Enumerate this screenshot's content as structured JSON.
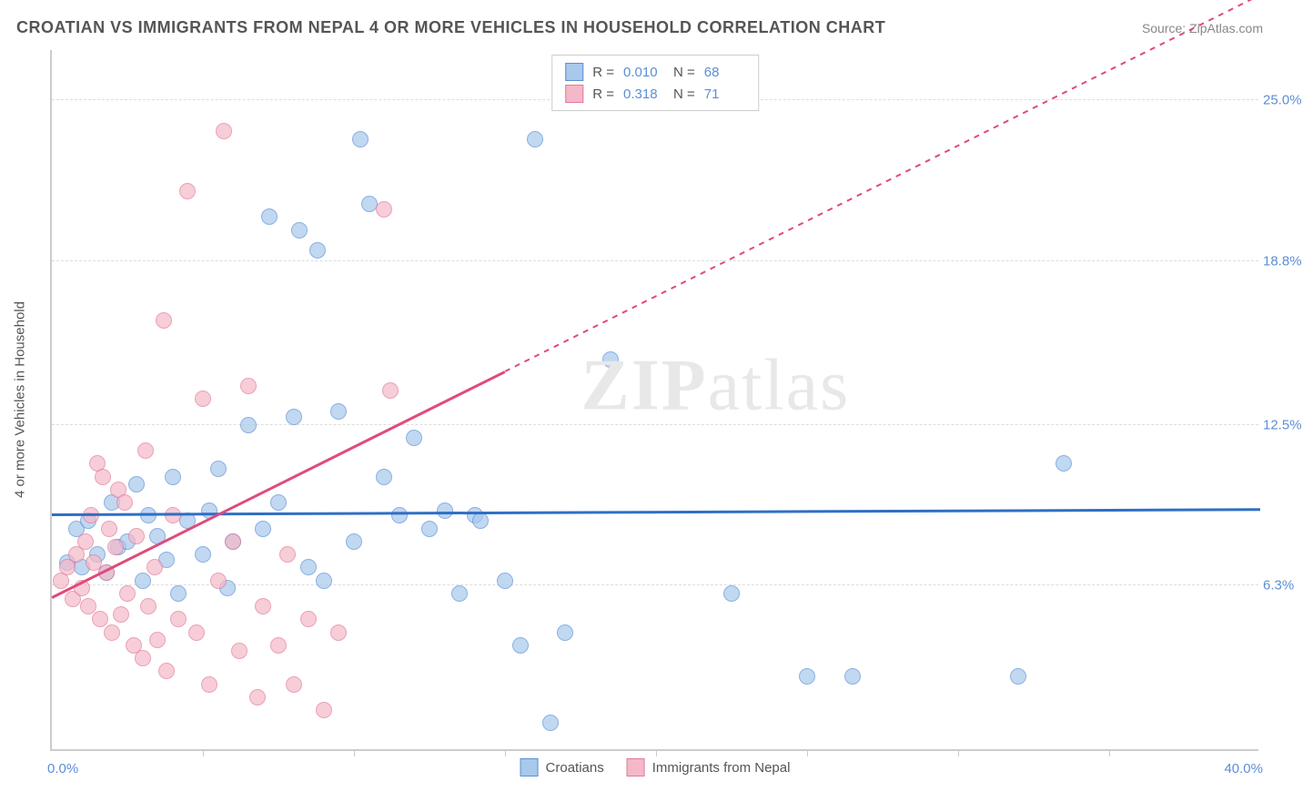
{
  "title": "CROATIAN VS IMMIGRANTS FROM NEPAL 4 OR MORE VEHICLES IN HOUSEHOLD CORRELATION CHART",
  "source": "Source: ZipAtlas.com",
  "watermark_part1": "ZIP",
  "watermark_part2": "atlas",
  "y_axis_title": "4 or more Vehicles in Household",
  "chart": {
    "type": "scatter",
    "xlim": [
      0,
      40
    ],
    "ylim": [
      0,
      27
    ],
    "x_min_label": "0.0%",
    "x_max_label": "40.0%",
    "x_ticks": [
      5,
      10,
      15,
      20,
      25,
      30,
      35
    ],
    "y_gridlines": [
      {
        "value": 6.3,
        "label": "6.3%"
      },
      {
        "value": 12.5,
        "label": "12.5%"
      },
      {
        "value": 18.8,
        "label": "18.8%"
      },
      {
        "value": 25.0,
        "label": "25.0%"
      }
    ],
    "grid_color": "#dddddd",
    "background_color": "#ffffff",
    "axis_color": "#cccccc",
    "tick_label_color": "#5b8fd6"
  },
  "series": [
    {
      "name": "Croatians",
      "fill_color": "#a8c8ec",
      "stroke_color": "#5b8fd6",
      "line_color": "#2f6fc4",
      "R": "0.010",
      "N": "68",
      "trend": {
        "x1": 0,
        "y1": 9.0,
        "x2": 40,
        "y2": 9.2,
        "dash": false
      },
      "points": [
        [
          0.5,
          7.2
        ],
        [
          0.8,
          8.5
        ],
        [
          1.0,
          7.0
        ],
        [
          1.2,
          8.8
        ],
        [
          1.5,
          7.5
        ],
        [
          1.8,
          6.8
        ],
        [
          2.0,
          9.5
        ],
        [
          2.2,
          7.8
        ],
        [
          2.5,
          8.0
        ],
        [
          2.8,
          10.2
        ],
        [
          3.0,
          6.5
        ],
        [
          3.2,
          9.0
        ],
        [
          3.5,
          8.2
        ],
        [
          3.8,
          7.3
        ],
        [
          4.0,
          10.5
        ],
        [
          4.2,
          6.0
        ],
        [
          4.5,
          8.8
        ],
        [
          5.0,
          7.5
        ],
        [
          5.2,
          9.2
        ],
        [
          5.5,
          10.8
        ],
        [
          5.8,
          6.2
        ],
        [
          6.0,
          8.0
        ],
        [
          6.5,
          12.5
        ],
        [
          7.0,
          8.5
        ],
        [
          7.2,
          20.5
        ],
        [
          7.5,
          9.5
        ],
        [
          8.0,
          12.8
        ],
        [
          8.2,
          20.0
        ],
        [
          8.5,
          7.0
        ],
        [
          8.8,
          19.2
        ],
        [
          9.0,
          6.5
        ],
        [
          9.5,
          13.0
        ],
        [
          10.0,
          8.0
        ],
        [
          10.2,
          23.5
        ],
        [
          10.5,
          21.0
        ],
        [
          11.0,
          10.5
        ],
        [
          11.5,
          9.0
        ],
        [
          12.0,
          12.0
        ],
        [
          12.5,
          8.5
        ],
        [
          13.0,
          9.2
        ],
        [
          13.5,
          6.0
        ],
        [
          14.0,
          9.0
        ],
        [
          14.2,
          8.8
        ],
        [
          15.0,
          6.5
        ],
        [
          15.5,
          4.0
        ],
        [
          16.0,
          23.5
        ],
        [
          16.5,
          1.0
        ],
        [
          17.0,
          4.5
        ],
        [
          18.5,
          15.0
        ],
        [
          22.5,
          6.0
        ],
        [
          25.0,
          2.8
        ],
        [
          26.5,
          2.8
        ],
        [
          32.0,
          2.8
        ],
        [
          33.5,
          11.0
        ]
      ]
    },
    {
      "name": "Immigrants from Nepal",
      "fill_color": "#f5b8c8",
      "stroke_color": "#e27a9a",
      "line_color": "#e04a7a",
      "R": "0.318",
      "N": "71",
      "trend": {
        "x1": 0,
        "y1": 5.8,
        "x2": 15,
        "y2": 14.5,
        "dash": false
      },
      "trend_dash": {
        "x1": 15,
        "y1": 14.5,
        "x2": 40,
        "y2": 29.0
      },
      "points": [
        [
          0.3,
          6.5
        ],
        [
          0.5,
          7.0
        ],
        [
          0.7,
          5.8
        ],
        [
          0.8,
          7.5
        ],
        [
          1.0,
          6.2
        ],
        [
          1.1,
          8.0
        ],
        [
          1.2,
          5.5
        ],
        [
          1.3,
          9.0
        ],
        [
          1.4,
          7.2
        ],
        [
          1.5,
          11.0
        ],
        [
          1.6,
          5.0
        ],
        [
          1.7,
          10.5
        ],
        [
          1.8,
          6.8
        ],
        [
          1.9,
          8.5
        ],
        [
          2.0,
          4.5
        ],
        [
          2.1,
          7.8
        ],
        [
          2.2,
          10.0
        ],
        [
          2.3,
          5.2
        ],
        [
          2.4,
          9.5
        ],
        [
          2.5,
          6.0
        ],
        [
          2.7,
          4.0
        ],
        [
          2.8,
          8.2
        ],
        [
          3.0,
          3.5
        ],
        [
          3.1,
          11.5
        ],
        [
          3.2,
          5.5
        ],
        [
          3.4,
          7.0
        ],
        [
          3.5,
          4.2
        ],
        [
          3.7,
          16.5
        ],
        [
          3.8,
          3.0
        ],
        [
          4.0,
          9.0
        ],
        [
          4.2,
          5.0
        ],
        [
          4.5,
          21.5
        ],
        [
          4.8,
          4.5
        ],
        [
          5.0,
          13.5
        ],
        [
          5.2,
          2.5
        ],
        [
          5.5,
          6.5
        ],
        [
          5.7,
          23.8
        ],
        [
          6.0,
          8.0
        ],
        [
          6.2,
          3.8
        ],
        [
          6.5,
          14.0
        ],
        [
          6.8,
          2.0
        ],
        [
          7.0,
          5.5
        ],
        [
          7.5,
          4.0
        ],
        [
          7.8,
          7.5
        ],
        [
          8.0,
          2.5
        ],
        [
          8.5,
          5.0
        ],
        [
          9.0,
          1.5
        ],
        [
          9.5,
          4.5
        ],
        [
          11.0,
          20.8
        ],
        [
          11.2,
          13.8
        ]
      ]
    }
  ],
  "legend_top": {
    "R_label": "R =",
    "N_label": "N ="
  },
  "legend_bottom": {
    "items": [
      "Croatians",
      "Immigrants from Nepal"
    ]
  }
}
